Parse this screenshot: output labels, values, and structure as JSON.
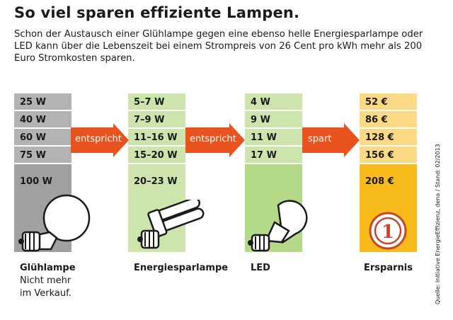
{
  "header": {
    "title": "So viel sparen effiziente Lampen.",
    "intro": "Schon der Austausch einer Glühlampe gegen eine ebenso helle Energiesparlampe oder LED kann über die Lebenszeit bei einem Strompreis von 26 Cent pro kWh mehr als 200 Euro Stromkosten sparen."
  },
  "columns": {
    "gluehlampe": {
      "label": "Glühlampe",
      "note_line1": "Nicht mehr",
      "note_line2": "im Verkauf.",
      "values": [
        "25 W",
        "40 W",
        "60 W",
        "75 W",
        "100 W"
      ]
    },
    "energiesparlampe": {
      "label": "Energiesparlampe",
      "values": [
        "5–7 W",
        "7–9 W",
        "11–16 W",
        "15–20 W",
        "20–23 W"
      ]
    },
    "led": {
      "label": "LED",
      "values": [
        "4 W",
        "9 W",
        "11 W",
        "17 W"
      ]
    },
    "ersparnis": {
      "label": "Ersparnis",
      "values": [
        "52 €",
        "86 €",
        "128 €",
        "156 €",
        "208 €"
      ],
      "badge": "1"
    }
  },
  "arrows": [
    "entspricht",
    "entspricht",
    "spart"
  ],
  "source": "Quelle: Initiative EnergieEffizienz, dena / Stand: 02/2013",
  "colors": {
    "gray": "#b3b3b3",
    "green": "#cde5ad",
    "orange_light": "#fbd985",
    "orange_dark": "#f7bb1c",
    "arrow": "#e9531d"
  },
  "icons": [
    "incandescent-bulb-icon",
    "cfl-bulb-icon",
    "led-bulb-icon",
    "euro-coin-icon"
  ]
}
